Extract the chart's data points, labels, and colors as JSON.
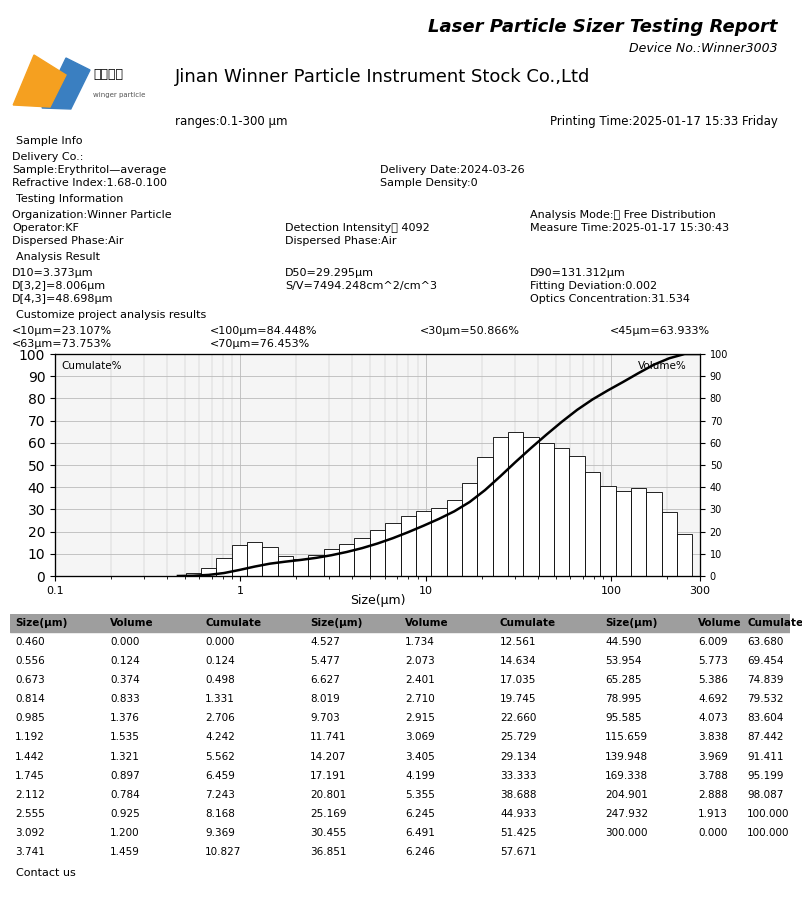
{
  "title": "Laser Particle Sizer Testing Report",
  "device_no": "Device No.:Winner3003",
  "company": "Jinan Winner Particle Instrument Stock Co.,Ltd",
  "ranges": "ranges:0.1-300 μm",
  "printing_time": "Printing Time:2025-01-17 15:33 Friday",
  "sample_info_header": "Sample Info",
  "delivery_co": "Delivery Co.:",
  "sample_name": "Sample:Erythritol—average",
  "delivery_date": "Delivery Date:2024-03-26",
  "refractive_index": "Refractive Index:1.68-0.100",
  "sample_density": "Sample Density:0",
  "testing_info_header": "Testing Information",
  "organization": "Organization:Winner Particle",
  "analysis_mode": "Analysis Mode:： Free Distribution",
  "operator": "Operator:KF",
  "detection_intensity": "Detection Intensity： 4092",
  "measure_time": "Measure Time:2025-01-17 15:30:43",
  "dispersed_phase1": "Dispersed Phase:Air",
  "dispersed_phase2": "Dispersed Phase:Air",
  "analysis_result_header": "Analysis Result",
  "d10": "D10=3.373μm",
  "d50": "D50=29.295μm",
  "d90": "D90=131.312μm",
  "d32": "D[3,2]=8.006μm",
  "sv": "S/V=7494.248cm^2/cm^3",
  "fitting_deviation": "Fitting Deviation:0.002",
  "d43": "D[4,3]=48.698μm",
  "optics_concentration": "Optics Concentration:31.534",
  "customize_header": "Customize project analysis results",
  "custom1": "<10μm=23.107%",
  "custom2": "<100μm=84.448%",
  "custom3": "<30μm=50.866%",
  "custom4": "<45μm=63.933%",
  "custom5": "<63μm=73.753%",
  "custom6": "<70μm=76.453%",
  "xlabel": "Size(μm)",
  "ylabel_left": "Cumulate%",
  "ylabel_right": "Volume%",
  "contact_us": "Contact us",
  "bar_sizes": [
    0.46,
    0.556,
    0.673,
    0.814,
    0.985,
    1.192,
    1.442,
    1.745,
    2.112,
    2.555,
    3.092,
    3.741,
    4.527,
    5.477,
    6.627,
    8.019,
    9.703,
    11.741,
    14.207,
    17.191,
    20.801,
    25.169,
    30.455,
    36.851,
    44.59,
    53.954,
    65.285,
    78.995,
    95.585,
    115.659,
    139.948,
    169.338,
    204.901,
    247.932,
    300.0
  ],
  "volumes": [
    0.0,
    0.124,
    0.374,
    0.833,
    1.376,
    1.535,
    1.321,
    0.897,
    0.784,
    0.925,
    1.2,
    1.459,
    1.734,
    2.073,
    2.401,
    2.71,
    2.915,
    3.069,
    3.405,
    4.199,
    5.355,
    6.245,
    6.491,
    6.246,
    6.009,
    5.773,
    5.386,
    4.692,
    4.073,
    3.838,
    3.969,
    3.788,
    2.888,
    1.913,
    0.0
  ],
  "cumulates": [
    0.0,
    0.124,
    0.498,
    1.331,
    2.706,
    4.242,
    5.562,
    6.459,
    7.243,
    8.168,
    9.369,
    10.827,
    12.561,
    14.634,
    17.035,
    19.745,
    22.66,
    25.729,
    29.134,
    33.333,
    38.688,
    44.933,
    51.425,
    57.671,
    63.68,
    69.454,
    74.839,
    79.532,
    83.604,
    87.442,
    91.411,
    95.199,
    98.087,
    100.0,
    100.0
  ],
  "table_data": [
    [
      0.46,
      0.0,
      0.0,
      4.527,
      1.734,
      12.561,
      44.59,
      6.009,
      63.68
    ],
    [
      0.556,
      0.124,
      0.124,
      5.477,
      2.073,
      14.634,
      53.954,
      5.773,
      69.454
    ],
    [
      0.673,
      0.374,
      0.498,
      6.627,
      2.401,
      17.035,
      65.285,
      5.386,
      74.839
    ],
    [
      0.814,
      0.833,
      1.331,
      8.019,
      2.71,
      19.745,
      78.995,
      4.692,
      79.532
    ],
    [
      0.985,
      1.376,
      2.706,
      9.703,
      2.915,
      22.66,
      95.585,
      4.073,
      83.604
    ],
    [
      1.192,
      1.535,
      4.242,
      11.741,
      3.069,
      25.729,
      115.659,
      3.838,
      87.442
    ],
    [
      1.442,
      1.321,
      5.562,
      14.207,
      3.405,
      29.134,
      139.948,
      3.969,
      91.411
    ],
    [
      1.745,
      0.897,
      6.459,
      17.191,
      4.199,
      33.333,
      169.338,
      3.788,
      95.199
    ],
    [
      2.112,
      0.784,
      7.243,
      20.801,
      5.355,
      38.688,
      204.901,
      2.888,
      98.087
    ],
    [
      2.555,
      0.925,
      8.168,
      25.169,
      6.245,
      44.933,
      247.932,
      1.913,
      100.0
    ],
    [
      3.092,
      1.2,
      9.369,
      30.455,
      6.491,
      51.425,
      300.0,
      0.0,
      100.0
    ],
    [
      3.741,
      1.459,
      10.827,
      36.851,
      6.246,
      57.671,
      null,
      null,
      null
    ]
  ],
  "header_bg": "#9e9e9e",
  "bar_color": "#ffffff",
  "bar_edge": "#000000",
  "curve_color": "#000000",
  "grid_color": "#bbbbbb",
  "bg_color": "#ffffff",
  "logo_orange": "#F5A020",
  "logo_blue": "#3a7fc1"
}
